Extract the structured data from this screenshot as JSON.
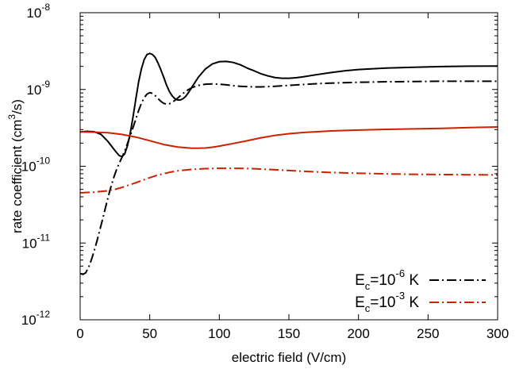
{
  "chart_data": {
    "type": "line",
    "xlabel": "electric field (V/cm)",
    "ylabel": "rate coefficient (cm3/s)",
    "ylabel_parts": {
      "before": "rate coefficient (cm",
      "sup": "3",
      "after": "/s)"
    },
    "xlim": [
      0,
      300
    ],
    "ylim": [
      1e-12,
      1e-08
    ],
    "yscale": "log",
    "grid": false,
    "legend_position": "bottom-right",
    "x_ticks": [
      "0",
      "50",
      "100",
      "150",
      "200",
      "250",
      "300"
    ],
    "y_ticks": [
      {
        "value": 1e-12,
        "base": "10",
        "exp": "-12"
      },
      {
        "value": 1e-11,
        "base": "10",
        "exp": "-11"
      },
      {
        "value": 1e-10,
        "base": "10",
        "exp": "-10"
      },
      {
        "value": 1e-09,
        "base": "10",
        "exp": "-9"
      },
      {
        "value": 1e-08,
        "base": "10",
        "exp": "-8"
      }
    ],
    "series": [
      {
        "name": "Ec=10-6 K",
        "legend": {
          "E": "E",
          "sub": "c",
          "mid": "=10",
          "sup": "-6",
          "end": " K"
        },
        "curves": [
          {
            "style": "solid",
            "color": "#000000",
            "x": [
              0,
              5,
              10,
              15,
              20,
              25,
              28,
              30,
              32,
              34,
              36,
              38,
              40,
              42,
              44,
              46,
              48,
              50,
              52,
              54,
              56,
              58,
              60,
              62,
              64,
              66,
              68,
              70,
              72,
              74,
              76,
              78,
              80,
              85,
              90,
              95,
              100,
              105,
              110,
              115,
              120,
              125,
              130,
              135,
              140,
              145,
              150,
              155,
              160,
              170,
              180,
              190,
              200,
              220,
              240,
              260,
              280,
              300
            ],
            "y": [
              2.8e-10,
              2.85e-10,
              2.82e-10,
              2.6e-10,
              2.1e-10,
              1.6e-10,
              1.38e-10,
              1.33e-10,
              1.45e-10,
              1.85e-10,
              2.7e-10,
              4.4e-10,
              7.5e-10,
              1.25e-09,
              1.85e-09,
              2.45e-09,
              2.85e-09,
              2.95e-09,
              2.85e-09,
              2.6e-09,
              2.2e-09,
              1.8e-09,
              1.45e-09,
              1.15e-09,
              9.5e-10,
              8.3e-10,
              7.6e-10,
              7.3e-10,
              7.3e-10,
              7.6e-10,
              8.2e-10,
              9.2e-10,
              1.05e-09,
              1.45e-09,
              1.85e-09,
              2.15e-09,
              2.3e-09,
              2.32e-09,
              2.25e-09,
              2.1e-09,
              1.9e-09,
              1.75e-09,
              1.6e-09,
              1.5e-09,
              1.43e-09,
              1.4e-09,
              1.4e-09,
              1.42e-09,
              1.46e-09,
              1.56e-09,
              1.66e-09,
              1.75e-09,
              1.82e-09,
              1.9e-09,
              1.95e-09,
              1.99e-09,
              2.01e-09,
              2.02e-09
            ]
          },
          {
            "style": "dashdot",
            "color": "#000000",
            "x": [
              0,
              2,
              4,
              6,
              8,
              10,
              12,
              14,
              16,
              18,
              20,
              22,
              24,
              26,
              28,
              30,
              32,
              34,
              36,
              38,
              40,
              42,
              44,
              46,
              48,
              50,
              52,
              54,
              56,
              58,
              60,
              62,
              64,
              66,
              68,
              70,
              72,
              74,
              76,
              78,
              80,
              85,
              90,
              95,
              100,
              105,
              110,
              115,
              120,
              125,
              130,
              135,
              140,
              150,
              160,
              170,
              180,
              200,
              220,
              240,
              260,
              280,
              300
            ],
            "y": [
              4e-12,
              3.9e-12,
              4.1e-12,
              4.8e-12,
              6e-12,
              7.8e-12,
              1.05e-11,
              1.45e-11,
              2e-11,
              2.8e-11,
              3.9e-11,
              5.3e-11,
              7e-11,
              8.9e-11,
              1.09e-10,
              1.3e-10,
              1.58e-10,
              1.98e-10,
              2.5e-10,
              3.2e-10,
              4.1e-10,
              5.3e-10,
              6.6e-10,
              7.8e-10,
              8.7e-10,
              9.1e-10,
              8.9e-10,
              8.3e-10,
              7.6e-10,
              7e-10,
              6.6e-10,
              6.45e-10,
              6.5e-10,
              6.8e-10,
              7.2e-10,
              7.7e-10,
              8.3e-10,
              8.9e-10,
              9.5e-10,
              1e-09,
              1.05e-09,
              1.13e-09,
              1.17e-09,
              1.18e-09,
              1.17e-09,
              1.15e-09,
              1.12e-09,
              1.1e-09,
              1.09e-09,
              1.08e-09,
              1.08e-09,
              1.09e-09,
              1.1e-09,
              1.13e-09,
              1.16e-09,
              1.19e-09,
              1.21e-09,
              1.24e-09,
              1.26e-09,
              1.27e-09,
              1.28e-09,
              1.28e-09,
              1.28e-09
            ]
          }
        ]
      },
      {
        "name": "Ec=10-3 K",
        "legend": {
          "E": "E",
          "sub": "c",
          "mid": "=10",
          "sup": "-3",
          "end": " K"
        },
        "curves": [
          {
            "style": "solid",
            "color": "#cc2200",
            "x": [
              0,
              10,
              20,
              30,
              40,
              50,
              60,
              70,
              80,
              85,
              90,
              95,
              100,
              110,
              120,
              130,
              140,
              150,
              160,
              180,
              200,
              220,
              240,
              260,
              280,
              300
            ],
            "y": [
              2.8e-10,
              2.78e-10,
              2.73e-10,
              2.6e-10,
              2.4e-10,
              2.15e-10,
              1.92e-10,
              1.78e-10,
              1.72e-10,
              1.72e-10,
              1.73e-10,
              1.77e-10,
              1.83e-10,
              1.98e-10,
              2.15e-10,
              2.35e-10,
              2.52e-10,
              2.65e-10,
              2.75e-10,
              2.88e-10,
              2.96e-10,
              3.02e-10,
              3.07e-10,
              3.12e-10,
              3.19e-10,
              3.25e-10
            ]
          },
          {
            "style": "dashdot",
            "color": "#cc2200",
            "x": [
              0,
              10,
              20,
              25,
              30,
              35,
              40,
              45,
              50,
              55,
              60,
              65,
              70,
              75,
              80,
              90,
              100,
              110,
              120,
              130,
              140,
              150,
              160,
              180,
              200,
              220,
              240,
              260,
              280,
              300
            ],
            "y": [
              4.5e-11,
              4.6e-11,
              4.8e-11,
              5e-11,
              5.3e-11,
              5.7e-11,
              6.1e-11,
              6.6e-11,
              7.1e-11,
              7.6e-11,
              8e-11,
              8.4e-11,
              8.7e-11,
              8.9e-11,
              9.1e-11,
              9.3e-11,
              9.4e-11,
              9.4e-11,
              9.35e-11,
              9.2e-11,
              9e-11,
              8.8e-11,
              8.6e-11,
              8.3e-11,
              8.1e-11,
              7.95e-11,
              7.85e-11,
              7.8e-11,
              7.75e-11,
              7.7e-11
            ]
          }
        ]
      }
    ]
  }
}
